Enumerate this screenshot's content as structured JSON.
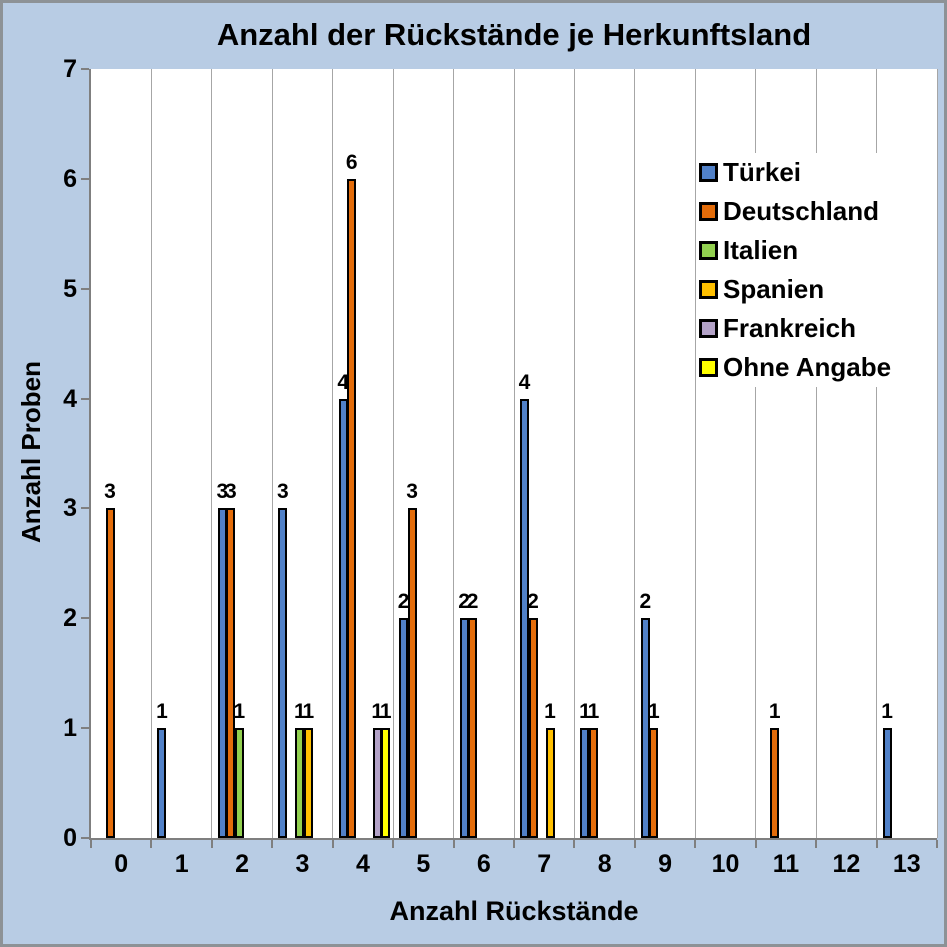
{
  "window": {
    "title": "Anzahl der Rückstände je Herkunftsland"
  },
  "chart_data": {
    "type": "bar",
    "title": "Anzahl der Rückstände je Herkunftsland",
    "xlabel": "Anzahl Rückstände",
    "ylabel": "Anzahl Proben",
    "categories": [
      "0",
      "1",
      "2",
      "3",
      "4",
      "5",
      "6",
      "7",
      "8",
      "9",
      "10",
      "11",
      "12",
      "13"
    ],
    "ylim": [
      0,
      7
    ],
    "yticks": [
      "0",
      "1",
      "2",
      "3",
      "4",
      "5",
      "6",
      "7"
    ],
    "grid": "vertical-only",
    "legend_position": "inside-top-right",
    "data_labels": true,
    "series": [
      {
        "name": "Türkei",
        "color": "#5181c8",
        "values": [
          null,
          1,
          3,
          3,
          4,
          2,
          2,
          4,
          1,
          2,
          null,
          null,
          null,
          1
        ]
      },
      {
        "name": "Deutschland",
        "color": "#e36c0a",
        "values": [
          3,
          null,
          3,
          null,
          6,
          3,
          2,
          2,
          1,
          1,
          null,
          1,
          null,
          null
        ]
      },
      {
        "name": "Italien",
        "color": "#92d050",
        "values": [
          null,
          null,
          1,
          1,
          null,
          null,
          null,
          null,
          null,
          null,
          null,
          null,
          null,
          null
        ]
      },
      {
        "name": "Spanien",
        "color": "#ffc000",
        "values": [
          null,
          null,
          null,
          1,
          null,
          null,
          null,
          1,
          null,
          null,
          null,
          null,
          null,
          null
        ]
      },
      {
        "name": "Frankreich",
        "color": "#b3a2c7",
        "values": [
          null,
          null,
          null,
          null,
          1,
          null,
          null,
          null,
          null,
          null,
          null,
          null,
          null,
          null
        ]
      },
      {
        "name": "Ohne Angabe",
        "color": "#ffff00",
        "values": [
          null,
          null,
          null,
          null,
          1,
          null,
          null,
          null,
          null,
          null,
          null,
          null,
          null,
          null
        ]
      }
    ],
    "colors": {
      "chart_background": "#b8cce4",
      "plot_background": "#ffffff",
      "gridline": "#a6a6a6",
      "axis": "#7f7f7f",
      "frame_border": "#8d9296",
      "text": "#000000",
      "bar_border": "#000000"
    }
  }
}
